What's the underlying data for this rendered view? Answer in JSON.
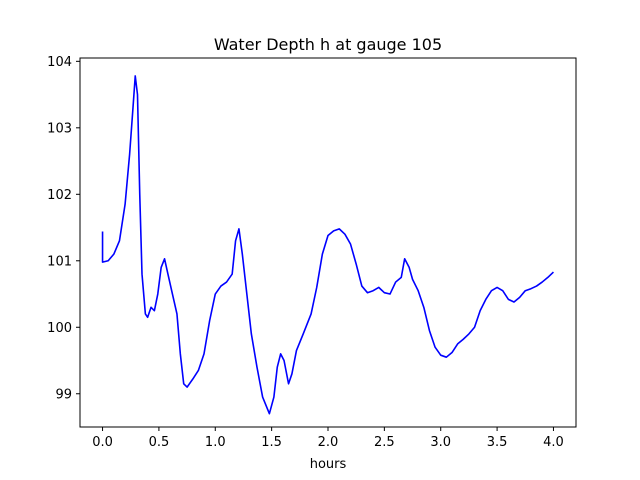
{
  "chart_data": {
    "type": "line",
    "title": "Water Depth h at gauge 105",
    "xlabel": "hours",
    "ylabel": "",
    "xlim": [
      -0.2,
      4.2
    ],
    "ylim": [
      98.5,
      104.05
    ],
    "x_ticks": [
      0.0,
      0.5,
      1.0,
      1.5,
      2.0,
      2.5,
      3.0,
      3.5,
      4.0
    ],
    "x_tick_labels": [
      "0.0",
      "0.5",
      "1.0",
      "1.5",
      "2.0",
      "2.5",
      "3.0",
      "3.5",
      "4.0"
    ],
    "y_ticks": [
      99,
      100,
      101,
      102,
      103,
      104
    ],
    "y_tick_labels": [
      "99",
      "100",
      "101",
      "102",
      "103",
      "104"
    ],
    "grid": false,
    "legend": false,
    "series": [
      {
        "color": "#0000ff",
        "points": [
          [
            0.0,
            101.44
          ],
          [
            0.0,
            100.98
          ],
          [
            0.05,
            101.0
          ],
          [
            0.1,
            101.1
          ],
          [
            0.15,
            101.3
          ],
          [
            0.2,
            101.85
          ],
          [
            0.24,
            102.6
          ],
          [
            0.27,
            103.3
          ],
          [
            0.29,
            103.78
          ],
          [
            0.31,
            103.5
          ],
          [
            0.33,
            102.0
          ],
          [
            0.35,
            100.8
          ],
          [
            0.38,
            100.2
          ],
          [
            0.4,
            100.15
          ],
          [
            0.43,
            100.3
          ],
          [
            0.46,
            100.25
          ],
          [
            0.49,
            100.5
          ],
          [
            0.52,
            100.9
          ],
          [
            0.55,
            101.03
          ],
          [
            0.58,
            100.8
          ],
          [
            0.62,
            100.5
          ],
          [
            0.66,
            100.2
          ],
          [
            0.69,
            99.6
          ],
          [
            0.72,
            99.15
          ],
          [
            0.75,
            99.1
          ],
          [
            0.8,
            99.22
          ],
          [
            0.85,
            99.35
          ],
          [
            0.9,
            99.6
          ],
          [
            0.95,
            100.1
          ],
          [
            1.0,
            100.5
          ],
          [
            1.05,
            100.62
          ],
          [
            1.1,
            100.68
          ],
          [
            1.15,
            100.8
          ],
          [
            1.18,
            101.3
          ],
          [
            1.21,
            101.48
          ],
          [
            1.24,
            101.1
          ],
          [
            1.28,
            100.5
          ],
          [
            1.32,
            99.9
          ],
          [
            1.37,
            99.4
          ],
          [
            1.42,
            98.95
          ],
          [
            1.48,
            98.7
          ],
          [
            1.52,
            98.95
          ],
          [
            1.55,
            99.4
          ],
          [
            1.58,
            99.6
          ],
          [
            1.61,
            99.5
          ],
          [
            1.65,
            99.15
          ],
          [
            1.68,
            99.3
          ],
          [
            1.72,
            99.65
          ],
          [
            1.78,
            99.9
          ],
          [
            1.85,
            100.2
          ],
          [
            1.9,
            100.6
          ],
          [
            1.95,
            101.1
          ],
          [
            2.0,
            101.38
          ],
          [
            2.05,
            101.45
          ],
          [
            2.1,
            101.48
          ],
          [
            2.15,
            101.4
          ],
          [
            2.2,
            101.25
          ],
          [
            2.25,
            100.95
          ],
          [
            2.3,
            100.62
          ],
          [
            2.35,
            100.52
          ],
          [
            2.4,
            100.55
          ],
          [
            2.45,
            100.6
          ],
          [
            2.5,
            100.52
          ],
          [
            2.55,
            100.5
          ],
          [
            2.6,
            100.68
          ],
          [
            2.65,
            100.75
          ],
          [
            2.68,
            101.03
          ],
          [
            2.72,
            100.9
          ],
          [
            2.75,
            100.72
          ],
          [
            2.8,
            100.55
          ],
          [
            2.85,
            100.3
          ],
          [
            2.9,
            99.95
          ],
          [
            2.95,
            99.7
          ],
          [
            3.0,
            99.58
          ],
          [
            3.05,
            99.55
          ],
          [
            3.1,
            99.62
          ],
          [
            3.15,
            99.75
          ],
          [
            3.2,
            99.82
          ],
          [
            3.25,
            99.9
          ],
          [
            3.3,
            100.0
          ],
          [
            3.35,
            100.25
          ],
          [
            3.4,
            100.42
          ],
          [
            3.45,
            100.55
          ],
          [
            3.5,
            100.6
          ],
          [
            3.55,
            100.55
          ],
          [
            3.6,
            100.42
          ],
          [
            3.65,
            100.38
          ],
          [
            3.7,
            100.45
          ],
          [
            3.75,
            100.55
          ],
          [
            3.8,
            100.58
          ],
          [
            3.85,
            100.62
          ],
          [
            3.9,
            100.68
          ],
          [
            3.95,
            100.75
          ],
          [
            4.0,
            100.83
          ]
        ]
      }
    ]
  }
}
